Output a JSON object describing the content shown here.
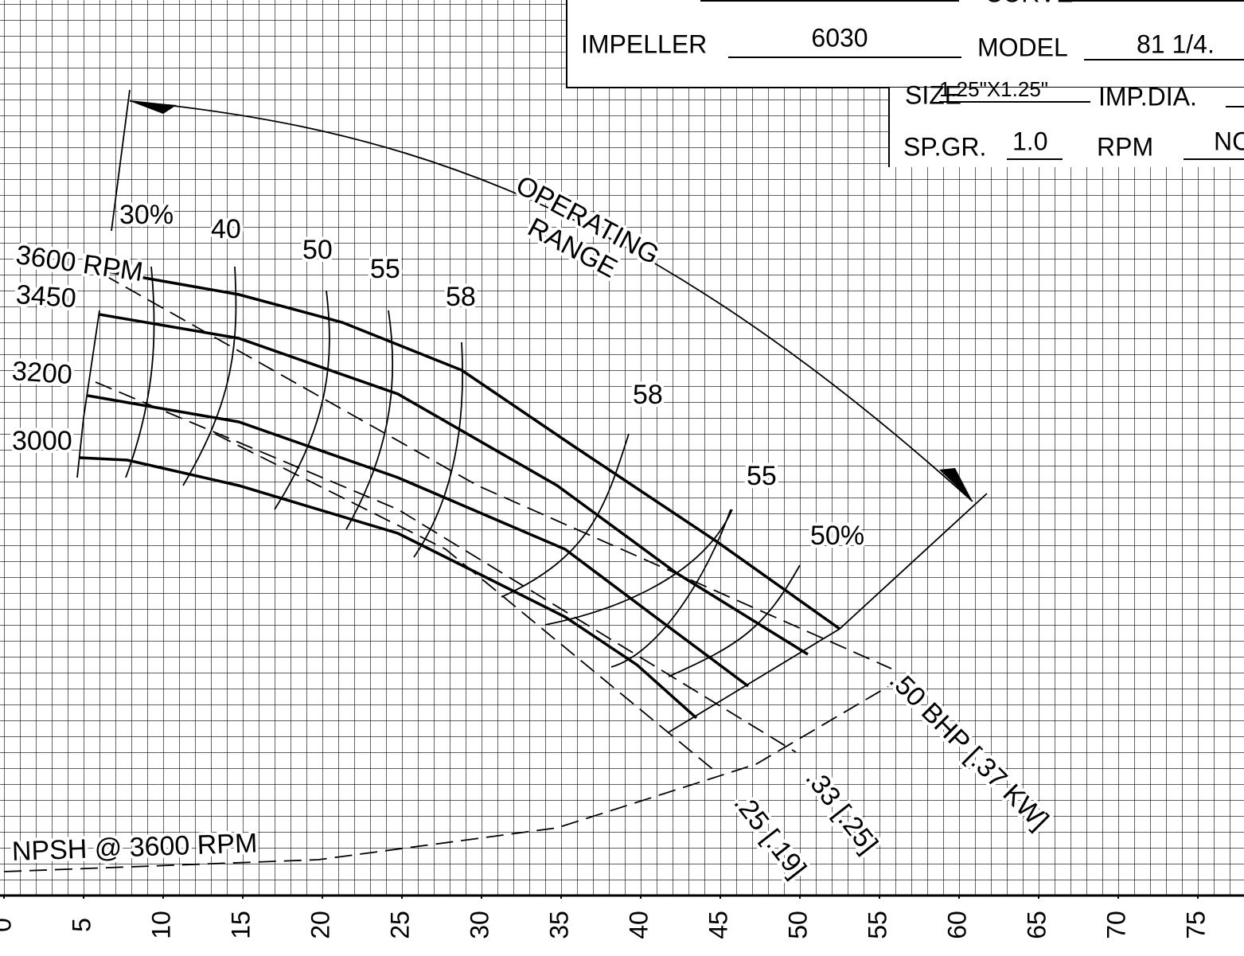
{
  "chart_data": {
    "type": "line",
    "xlim": [
      0,
      78
    ],
    "ylim": [
      0,
      56
    ],
    "xticks": [
      0,
      5,
      10,
      15,
      20,
      25,
      30,
      35,
      40,
      45,
      50,
      55,
      60,
      65,
      70,
      75
    ],
    "grid": true,
    "series": [
      {
        "name": "3600 RPM",
        "color": "#000000",
        "dash": false,
        "x": [
          6.25,
          14.75,
          21.25,
          28.75,
          35.75,
          44.75,
          52.5
        ],
        "values": [
          39.25,
          37.75,
          36,
          33,
          28.25,
          22.25,
          16.75
        ]
      },
      {
        "name": "3450",
        "color": "#000000",
        "dash": false,
        "x": [
          6,
          14.75,
          24.75,
          34.75,
          42.25,
          50.5
        ],
        "values": [
          36.5,
          35,
          31.5,
          25.75,
          20.25,
          15.15
        ]
      },
      {
        "name": "3200",
        "color": "#000000",
        "dash": false,
        "x": [
          5.25,
          14.75,
          24.75,
          35.25,
          41.25,
          46.75
        ],
        "values": [
          31.4,
          29.75,
          26.25,
          21.75,
          17.25,
          13.15
        ]
      },
      {
        "name": "3000",
        "color": "#000000",
        "dash": false,
        "x": [
          4.75,
          7.75,
          14.75,
          24.75,
          35.25,
          39.75,
          43.5
        ],
        "values": [
          27.5,
          27.35,
          25.75,
          22.75,
          17.5,
          14.5,
          11.15
        ]
      },
      {
        "name": ".50 BHP [.37 KW]",
        "color": "#000000",
        "dash": true,
        "x": [
          6.25,
          29.75,
          55.75
        ],
        "values": [
          39,
          25.75,
          14.25
        ]
      },
      {
        "name": ".33 [.25]",
        "color": "#000000",
        "dash": true,
        "x": [
          5.75,
          24.75,
          49.75
        ],
        "values": [
          32.25,
          24.25,
          9
        ]
      },
      {
        "name": ".25 [.19]",
        "color": "#000000",
        "dash": true,
        "x": [
          13.25,
          27.75,
          44.75
        ],
        "values": [
          29,
          21.75,
          7.75
        ]
      },
      {
        "name": "NPSH @ 3600 RPM",
        "color": "#000000",
        "dash": true,
        "x": [
          0,
          19.75,
          34.75,
          47.25,
          55.75
        ],
        "values": [
          1.5,
          2.25,
          4.25,
          8.25,
          13.25
        ]
      }
    ],
    "annotations": [
      "3600 RPM",
      "3450",
      "3200",
      "3000",
      "30%",
      "40",
      "50",
      "55",
      "58",
      "58",
      "55",
      "50%",
      "OPERATING",
      "RANGE",
      ".50 BHP [.37 KW]",
      ".33 [.25]",
      ".25 [.19]",
      "NPSH @ 3600 RPM"
    ]
  },
  "title_block": {
    "curve_label": "CURVE",
    "impeller_label": "IMPELLER",
    "impeller": "6030",
    "model_label": "MODEL",
    "model": "81 1/4.",
    "size_label": "SIZE",
    "size": "1.25\"X1.25\"",
    "imp_dia_label": "IMP.DIA.",
    "sp_gr_label": "SP.GR.",
    "sp_gr": "1.0",
    "rpm_label": "RPM",
    "rpm": "NC"
  }
}
